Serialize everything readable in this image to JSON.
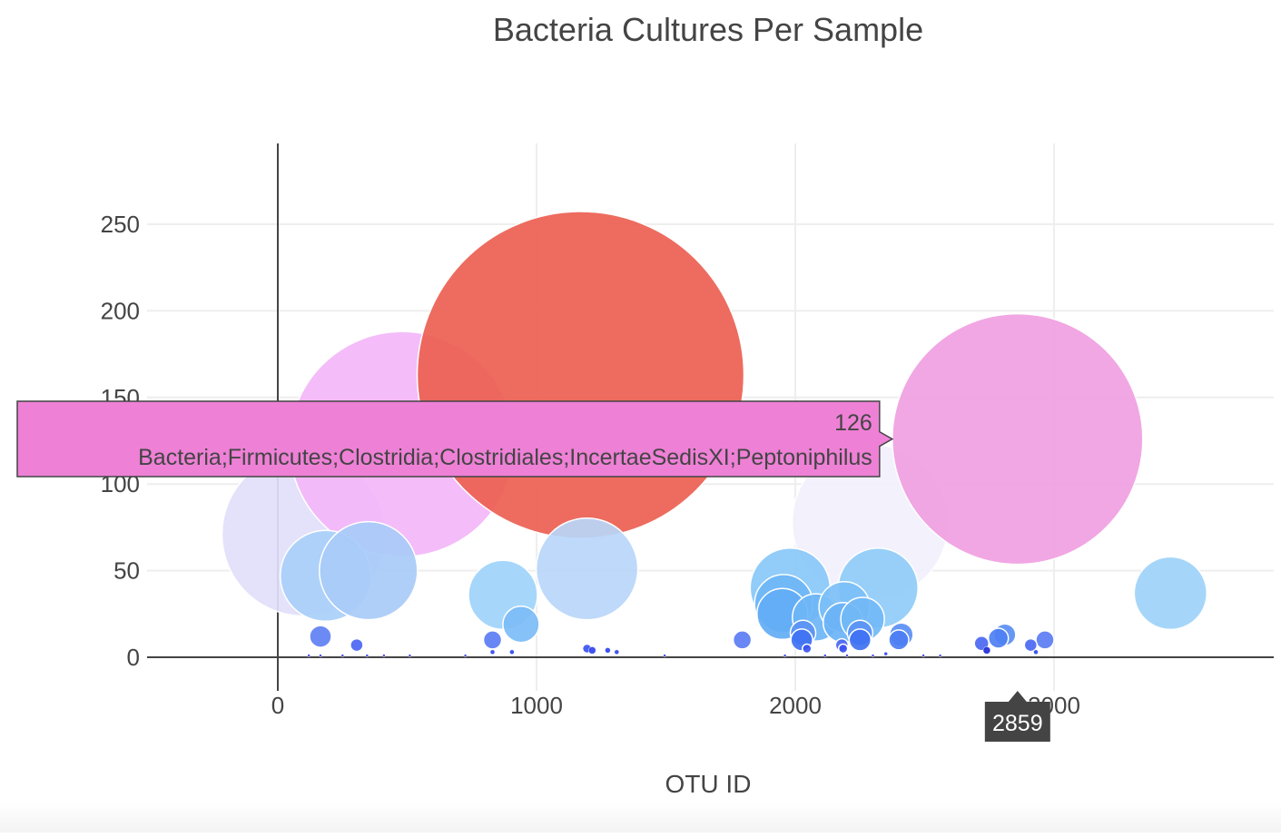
{
  "chart_data": {
    "type": "scatter",
    "title": "Bacteria Cultures Per Sample",
    "xlabel": "OTU ID",
    "ylabel": "",
    "xlim": [
      -500,
      3850
    ],
    "ylim": [
      -20,
      297
    ],
    "x_ticks": [
      0,
      1000,
      2000,
      3000
    ],
    "x_tick_labels": [
      "0",
      "1000",
      "2000",
      "3000"
    ],
    "y_ticks": [
      0,
      50,
      100,
      150,
      200,
      250
    ],
    "y_tick_labels": [
      "0",
      "50",
      "100",
      "150",
      "200",
      "250"
    ],
    "grid": true,
    "legend": "none",
    "colors": {
      "grid": "#eeeeee",
      "axis": "#444444",
      "tick_text": "#444444",
      "title_text": "#444444",
      "tooltip_bg": "#ee80d6",
      "tooltip_border": "#444444",
      "spike_label_bg": "#444444",
      "spike_label_text": "#ffffff"
    },
    "points": [
      {
        "x": 100,
        "y": 71,
        "r": 90,
        "color": "#e1e0fa"
      },
      {
        "x": 480,
        "y": 123,
        "r": 124,
        "color": "#f3b6f9"
      },
      {
        "x": 1170,
        "y": 163,
        "r": 180,
        "color": "#ec5f51"
      },
      {
        "x": 2290,
        "y": 78,
        "r": 86,
        "color": "#f2f0fc"
      },
      {
        "x": 2859,
        "y": 126,
        "r": 138,
        "color": "#f09fe1"
      },
      {
        "x": 185,
        "y": 47,
        "r": 50,
        "color": "#a9cff8"
      },
      {
        "x": 350,
        "y": 50,
        "r": 54,
        "color": "#a8cbf7"
      },
      {
        "x": 1195,
        "y": 51,
        "r": 56,
        "color": "#b9d6f8"
      },
      {
        "x": 870,
        "y": 36,
        "r": 38,
        "color": "#9ed4fa"
      },
      {
        "x": 3450,
        "y": 37,
        "r": 40,
        "color": "#9dd2f8"
      },
      {
        "x": 1980,
        "y": 40,
        "r": 44,
        "color": "#89c8f8"
      },
      {
        "x": 2320,
        "y": 40,
        "r": 44,
        "color": "#8fccf8"
      },
      {
        "x": 1955,
        "y": 31,
        "r": 32,
        "color": "#6fb6f6"
      },
      {
        "x": 1950,
        "y": 25,
        "r": 28,
        "color": "#62acf5"
      },
      {
        "x": 2080,
        "y": 23,
        "r": 26,
        "color": "#6db5f6"
      },
      {
        "x": 2190,
        "y": 29,
        "r": 28,
        "color": "#7cbff7"
      },
      {
        "x": 2185,
        "y": 20,
        "r": 22,
        "color": "#6bb3f6"
      },
      {
        "x": 2260,
        "y": 22,
        "r": 24,
        "color": "#72b9f6"
      },
      {
        "x": 940,
        "y": 19,
        "r": 20,
        "color": "#7cbcf6"
      },
      {
        "x": 2030,
        "y": 14,
        "r": 14,
        "color": "#5b93f4"
      },
      {
        "x": 2250,
        "y": 14,
        "r": 14,
        "color": "#5b93f4"
      },
      {
        "x": 2250,
        "y": 10,
        "r": 12,
        "color": "#3f72f2"
      },
      {
        "x": 2025,
        "y": 10,
        "r": 12,
        "color": "#3f72f2"
      },
      {
        "x": 2410,
        "y": 13,
        "r": 13,
        "color": "#5a8ef4"
      },
      {
        "x": 2400,
        "y": 10,
        "r": 11,
        "color": "#4c7ef3"
      },
      {
        "x": 2810,
        "y": 13,
        "r": 12,
        "color": "#5a8ef4"
      },
      {
        "x": 2785,
        "y": 11,
        "r": 11,
        "color": "#4e80f3"
      },
      {
        "x": 165,
        "y": 12,
        "r": 12,
        "color": "#5f80f3"
      },
      {
        "x": 830,
        "y": 10,
        "r": 10,
        "color": "#5b7cf3"
      },
      {
        "x": 1795,
        "y": 10,
        "r": 10,
        "color": "#5b7cf3"
      },
      {
        "x": 2965,
        "y": 10,
        "r": 10,
        "color": "#5b7cf3"
      },
      {
        "x": 2720,
        "y": 8,
        "r": 8,
        "color": "#4b68f2"
      },
      {
        "x": 2910,
        "y": 7,
        "r": 7,
        "color": "#4b68f2"
      },
      {
        "x": 305,
        "y": 7,
        "r": 7,
        "color": "#4a66f2"
      },
      {
        "x": 2180,
        "y": 7,
        "r": 7,
        "color": "#4a66f2"
      },
      {
        "x": 2185,
        "y": 5,
        "r": 5,
        "color": "#3b52f0"
      },
      {
        "x": 2045,
        "y": 5,
        "r": 5,
        "color": "#3b52f0"
      },
      {
        "x": 1195,
        "y": 5,
        "r": 5,
        "color": "#3b52f0"
      },
      {
        "x": 1215,
        "y": 4,
        "r": 4,
        "color": "#3047ee"
      },
      {
        "x": 2740,
        "y": 4,
        "r": 4,
        "color": "#1f2bd8"
      },
      {
        "x": 1275,
        "y": 4,
        "r": 3,
        "color": "#3047ee"
      },
      {
        "x": 1310,
        "y": 3,
        "r": 2.5,
        "color": "#3047ee"
      },
      {
        "x": 830,
        "y": 3,
        "r": 2.5,
        "color": "#3047ee"
      },
      {
        "x": 905,
        "y": 3,
        "r": 2.5,
        "color": "#3047ee"
      },
      {
        "x": 2930,
        "y": 3,
        "r": 2.5,
        "color": "#3047ee"
      },
      {
        "x": 2350,
        "y": 2,
        "r": 2,
        "color": "#3047ee"
      },
      {
        "x": 120,
        "y": 1,
        "r": 1.5,
        "color": "#3a40ee"
      },
      {
        "x": 165,
        "y": 1,
        "r": 1.5,
        "color": "#3a40ee"
      },
      {
        "x": 250,
        "y": 1,
        "r": 1.5,
        "color": "#3a40ee"
      },
      {
        "x": 345,
        "y": 1,
        "r": 1.5,
        "color": "#3a40ee"
      },
      {
        "x": 410,
        "y": 1,
        "r": 1.5,
        "color": "#3a40ee"
      },
      {
        "x": 510,
        "y": 1,
        "r": 1.5,
        "color": "#3a40ee"
      },
      {
        "x": 725,
        "y": 1,
        "r": 1.5,
        "color": "#3a40ee"
      },
      {
        "x": 1495,
        "y": 1,
        "r": 1.5,
        "color": "#3a40ee"
      },
      {
        "x": 1960,
        "y": 1,
        "r": 1.5,
        "color": "#3a40ee"
      },
      {
        "x": 2115,
        "y": 1,
        "r": 1.5,
        "color": "#3a40ee"
      },
      {
        "x": 2200,
        "y": 1,
        "r": 1.5,
        "color": "#3a40ee"
      },
      {
        "x": 2300,
        "y": 1,
        "r": 1.5,
        "color": "#3a40ee"
      },
      {
        "x": 2495,
        "y": 1,
        "r": 1.5,
        "color": "#3a40ee"
      },
      {
        "x": 2560,
        "y": 1,
        "r": 1.5,
        "color": "#3a40ee"
      }
    ],
    "hover": {
      "x": 2859,
      "y": 126,
      "x_label": "2859",
      "value_label": "126",
      "text": "Bacteria;Firmicutes;Clostridia;Clostridiales;IncertaeSedisXI;Peptoniphilus"
    }
  }
}
